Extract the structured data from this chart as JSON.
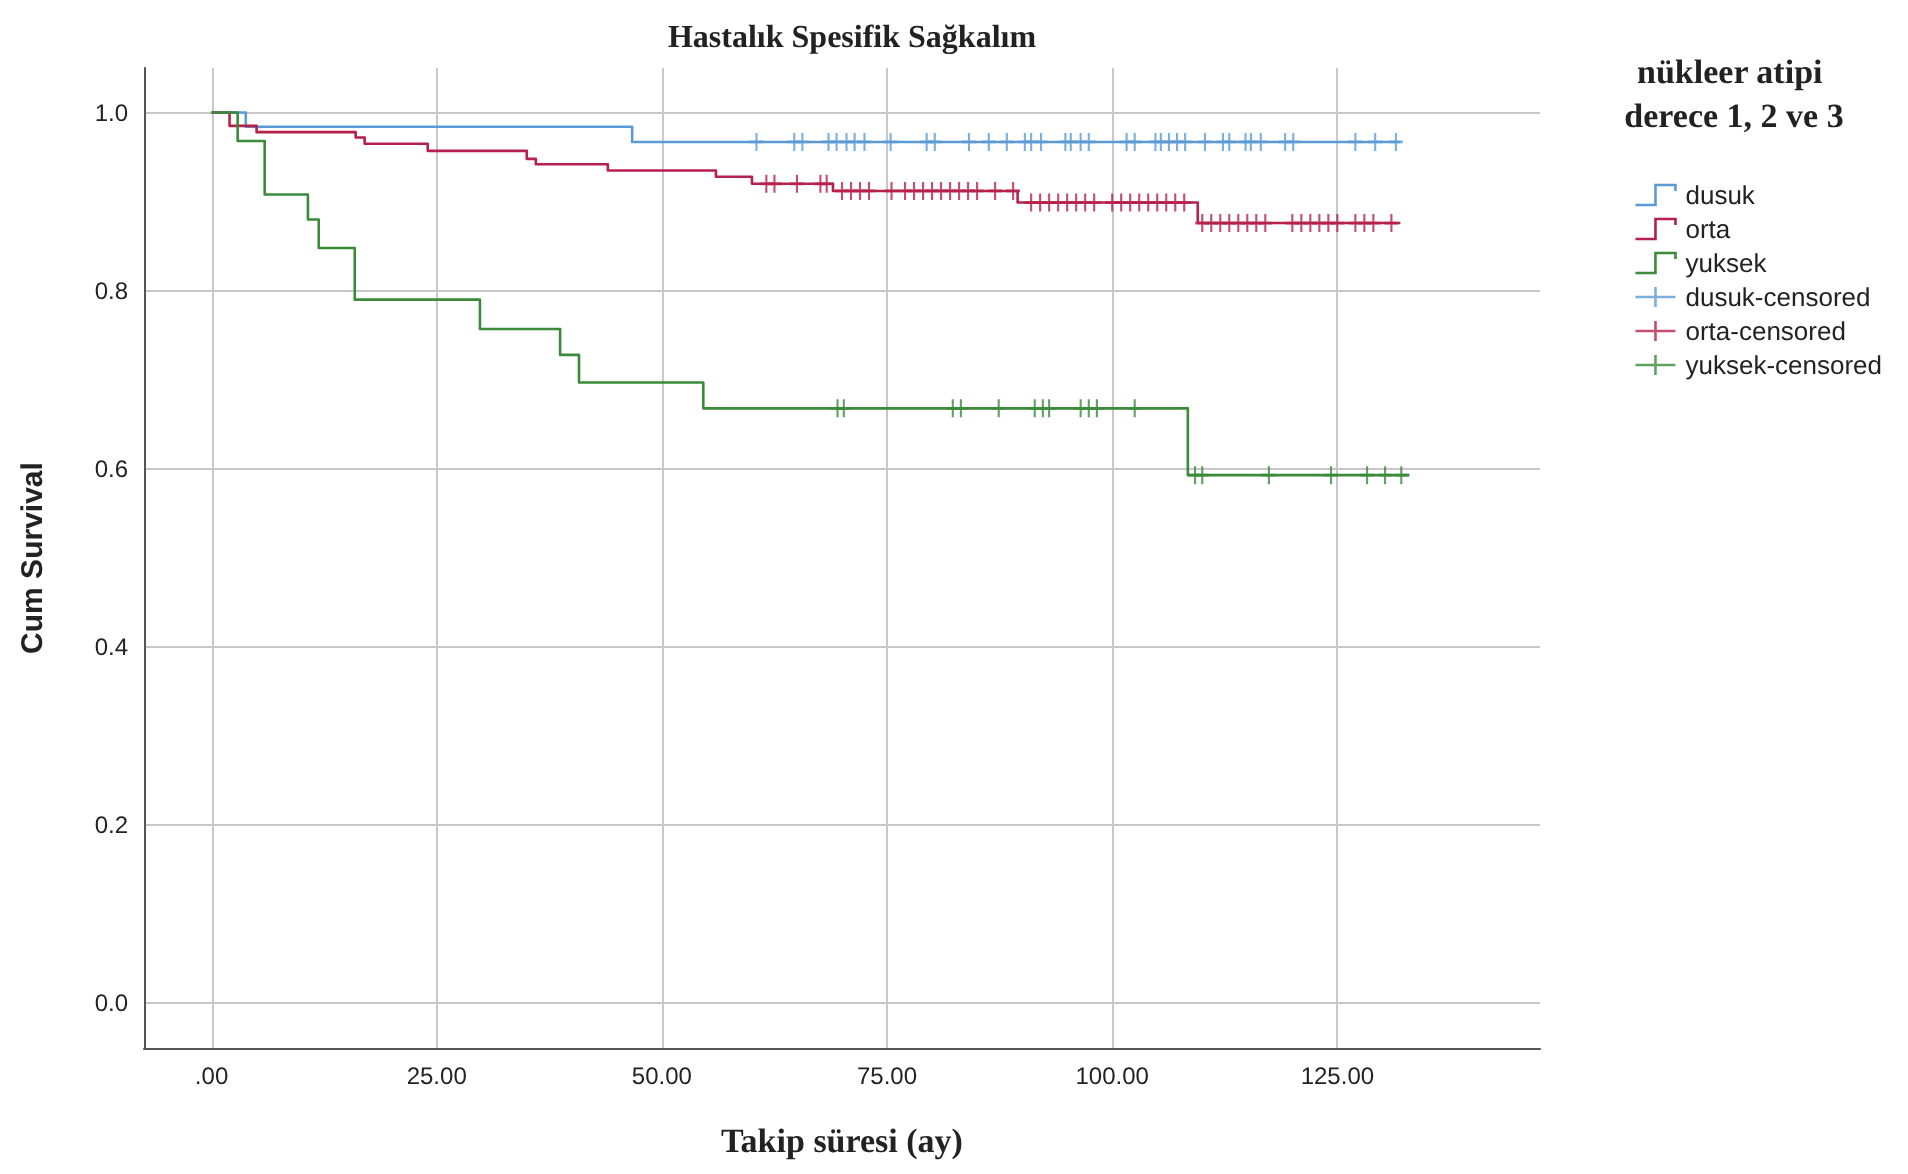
{
  "chart_data": {
    "type": "step",
    "title": "Hastalık Spesifik Sağkalım",
    "xlabel": "Takip süresi (ay)",
    "ylabel": "Cum Survival",
    "legend_title": "nükleer atipi derece 1, 2 ve 3",
    "xlim": [
      -7.5,
      147.5
    ],
    "ylim": [
      -0.05,
      1.05
    ],
    "xticks": [
      {
        "value": 0,
        "label": ".00"
      },
      {
        "value": 25,
        "label": "25.00"
      },
      {
        "value": 50,
        "label": "50.00"
      },
      {
        "value": 75,
        "label": "75.00"
      },
      {
        "value": 100,
        "label": "100.00"
      },
      {
        "value": 125,
        "label": "125.00"
      }
    ],
    "yticks": [
      {
        "value": 0,
        "label": "0.0"
      },
      0.2,
      0.4,
      0.6,
      0.8,
      {
        "value": 1,
        "label": "1.0"
      }
    ],
    "grid": true,
    "legend": "top right",
    "series": [
      {
        "name": "dusuk",
        "marker": "none",
        "color": "#5b9bd5",
        "x": [
          0,
          3.8,
          46.7,
          132
        ],
        "values": [
          1.0,
          0.984,
          0.967,
          0.967
        ]
      },
      {
        "name": "orta",
        "marker": "none",
        "color": "#b5204c",
        "x": [
          0,
          2,
          5,
          16,
          17,
          24,
          35,
          36,
          44,
          56,
          60,
          69,
          89.5,
          109.5,
          132
        ],
        "values": [
          1.0,
          0.985,
          0.978,
          0.972,
          0.965,
          0.957,
          0.948,
          0.942,
          0.935,
          0.928,
          0.92,
          0.912,
          0.899,
          0.876,
          0.876
        ]
      },
      {
        "name": "yuksek",
        "marker": "none",
        "color": "#3a8a3a",
        "x": [
          0,
          2.9,
          5.9,
          10.7,
          11.9,
          15.9,
          29.8,
          38.7,
          40.8,
          54.6,
          108.4,
          133
        ],
        "values": [
          1.0,
          0.968,
          0.908,
          0.88,
          0.848,
          0.79,
          0.757,
          0.728,
          0.697,
          0.668,
          0.593,
          0.593
        ]
      },
      {
        "name": "dusuk-censored",
        "type": "scatter",
        "marker": "cross",
        "color": "#5b9bd5",
        "x": [
          60.5,
          64.7,
          65.6,
          68.5,
          69.4,
          70.5,
          71.4,
          72.5,
          75.4,
          79.4,
          80.3,
          84.1,
          86.3,
          88.3,
          90.3,
          91,
          92.1,
          94.8,
          95.4,
          96.5,
          97.4,
          101.6,
          102.5,
          104.8,
          105.4,
          106.3,
          107.2,
          108.1,
          110.3,
          112.3,
          113,
          114.8,
          115.4,
          116.5,
          119.2,
          120.1,
          127,
          129.2,
          131.5
        ],
        "values": [
          0.967,
          0.967,
          0.967,
          0.967,
          0.967,
          0.967,
          0.967,
          0.967,
          0.967,
          0.967,
          0.967,
          0.967,
          0.967,
          0.967,
          0.967,
          0.967,
          0.967,
          0.967,
          0.967,
          0.967,
          0.967,
          0.967,
          0.967,
          0.967,
          0.967,
          0.967,
          0.967,
          0.967,
          0.967,
          0.967,
          0.967,
          0.967,
          0.967,
          0.967,
          0.967,
          0.967,
          0.967,
          0.967,
          0.967
        ]
      },
      {
        "name": "orta-censored",
        "type": "scatter",
        "marker": "cross",
        "color": "#b5204c",
        "x": [
          61.6,
          62.5,
          65,
          67.6,
          68.3,
          70,
          71,
          72,
          73,
          75.5,
          77,
          78,
          79,
          80,
          81,
          82,
          83,
          84,
          85,
          87,
          89,
          91,
          92,
          93,
          94,
          95,
          96,
          97,
          98,
          100,
          101,
          102,
          103,
          104,
          105,
          106,
          107,
          108,
          110,
          111,
          112,
          113,
          114,
          115,
          116,
          117,
          120,
          121,
          122,
          123,
          124,
          125,
          127,
          128,
          129,
          131
        ],
        "values": [
          0.92,
          0.92,
          0.92,
          0.92,
          0.92,
          0.912,
          0.912,
          0.912,
          0.912,
          0.912,
          0.912,
          0.912,
          0.912,
          0.912,
          0.912,
          0.912,
          0.912,
          0.912,
          0.912,
          0.912,
          0.912,
          0.899,
          0.899,
          0.899,
          0.899,
          0.899,
          0.899,
          0.899,
          0.899,
          0.899,
          0.899,
          0.899,
          0.899,
          0.899,
          0.899,
          0.899,
          0.899,
          0.899,
          0.876,
          0.876,
          0.876,
          0.876,
          0.876,
          0.876,
          0.876,
          0.876,
          0.876,
          0.876,
          0.876,
          0.876,
          0.876,
          0.876,
          0.876,
          0.876,
          0.876,
          0.876
        ]
      },
      {
        "name": "yuksek-censored",
        "type": "scatter",
        "marker": "cross",
        "color": "#3a8a3a",
        "x": [
          69.5,
          70.2,
          82.3,
          83.2,
          87.4,
          91.4,
          92.3,
          93,
          96.5,
          97.4,
          98.3,
          102.5,
          109.2,
          110,
          117.4,
          124.3,
          128.3,
          130.3,
          132.1
        ],
        "values": [
          0.668,
          0.668,
          0.668,
          0.668,
          0.668,
          0.668,
          0.668,
          0.668,
          0.668,
          0.668,
          0.668,
          0.668,
          0.593,
          0.593,
          0.593,
          0.593,
          0.593,
          0.593,
          0.593
        ]
      }
    ]
  }
}
